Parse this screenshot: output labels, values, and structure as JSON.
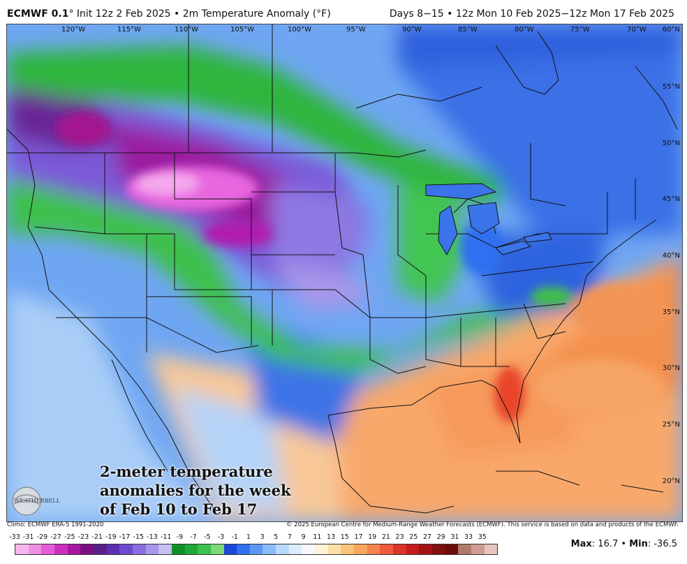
{
  "header": {
    "model": "ECMWF 0.1",
    "init": "° Init 12z 2 Feb 2025",
    "field": "• 2m Temperature Anomaly (°F)",
    "valid": "Days 8−15 • 12z Mon 10 Feb 2025−12z Mon 17 Feb 2025"
  },
  "map": {
    "lon_labels": [
      "120°W",
      "115°W",
      "110°W",
      "105°W",
      "100°W",
      "95°W",
      "90°W",
      "85°W",
      "80°W",
      "75°W",
      "70°W"
    ],
    "lat_labels": [
      "60°N",
      "55°N",
      "50°N",
      "45°N",
      "40°N",
      "35°N",
      "30°N",
      "25°N",
      "20°N"
    ],
    "caption": [
      "2-meter temperature",
      "anomalies for the week",
      "of Feb 10 to Feb 17"
    ],
    "logo_text": "WEATHERBELL"
  },
  "credits": {
    "climo": "Climo: ECMWF ERA-5 1991-2020",
    "copyright": "© 2025 European Centre for Medium-Range Weather Forecasts (ECMWF). This service is based on data and products of the ECMWF."
  },
  "legend": {
    "ticks": [
      "-33",
      "-31",
      "-29",
      "-27",
      "-25",
      "-23",
      "-21",
      "-19",
      "-17",
      "-15",
      "-13",
      "-11",
      "-9",
      "-7",
      "-5",
      "-3",
      "-1",
      "1",
      "3",
      "5",
      "7",
      "9",
      "11",
      "13",
      "15",
      "17",
      "19",
      "21",
      "23",
      "25",
      "27",
      "29",
      "31",
      "33",
      "35"
    ],
    "colors": [
      "#f4b6ec",
      "#ee8fe3",
      "#e55ed6",
      "#cc2fc0",
      "#a6179e",
      "#7b0f80",
      "#5a1f8a",
      "#5b2fb0",
      "#6c4ad0",
      "#8a6ee0",
      "#a996ea",
      "#c7bef2",
      "#0f8f2a",
      "#1ea83a",
      "#3cc24e",
      "#7ed878",
      "#1b47d8",
      "#2f6ff0",
      "#5c97f5",
      "#8bbbf8",
      "#b8d8fb",
      "#dcebfc",
      "#f5f7fb",
      "#fff2d6",
      "#fde0a8",
      "#fbc47e",
      "#f8a65e",
      "#f4834a",
      "#ee5a3a",
      "#dc3428",
      "#c21d1b",
      "#a21414",
      "#821010",
      "#6a0c0c",
      "#b07a6a",
      "#cf9e92",
      "#e8c4bc"
    ]
  },
  "stats": {
    "max_label": "Max",
    "max_value": "16.7",
    "min_label": "Min",
    "min_value": "-36.5"
  }
}
